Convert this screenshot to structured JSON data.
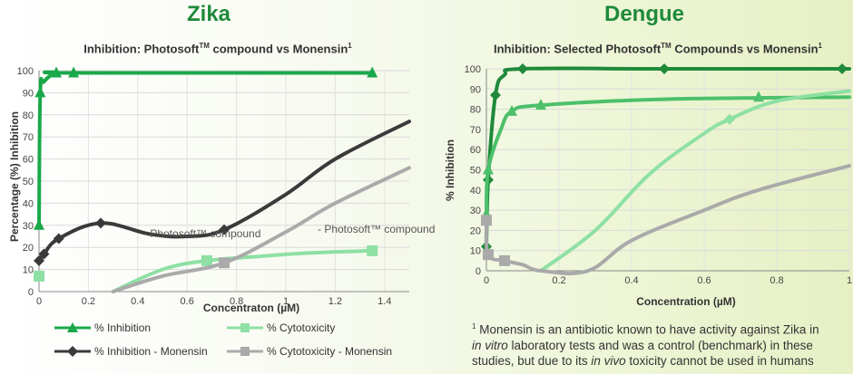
{
  "panels": [
    {
      "title": "Zika",
      "subtitle": "Inhibition: Photosoft",
      "subtitle_tm": "TM",
      "subtitle_rest": " compound vs Monensin",
      "subtitle_ref": "1"
    },
    {
      "title": "Dengue",
      "subtitle": "Inhibition: Selected Photosoft",
      "subtitle_tm": "TM",
      "subtitle_rest": " Compounds vs Monensin",
      "subtitle_ref": "1"
    }
  ],
  "annotations": {
    "zika_label_1": "- Photosoft™ compound",
    "zika_label_2": "- Photosoft™ compound"
  },
  "legend": [
    {
      "label": "% Inhibition",
      "color": "#1aa84a",
      "marker": "triangle"
    },
    {
      "label": "% Cytotoxicity",
      "color": "#8ee0a4",
      "marker": "square"
    },
    {
      "label": "% Inhibition - Monensin",
      "color": "#3a3a3a",
      "marker": "diamond"
    },
    {
      "label": "% Cytotoxicity - Monensin",
      "color": "#aaaaaa",
      "marker": "square"
    }
  ],
  "footnote": {
    "ref": "1",
    "line1": " Monensin is an antibiotic known to have activity against Zika in",
    "line2a": "in vitro",
    "line2b": " laboratory tests and was a control (benchmark) in these",
    "line3a": "studies, but due to its ",
    "line3b": "in vivo",
    "line3c": " toxicity cannot be used in humans"
  },
  "chart_data": [
    {
      "type": "line",
      "title": "Inhibition: Photosoft™ compound vs Monensin¹",
      "xlabel": "Concentraton (µM)",
      "ylabel": "Percentage (%) Inhibition",
      "xlim": [
        0,
        1.5
      ],
      "ylim": [
        0,
        100
      ],
      "xticks": [
        "0",
        "0.2",
        "0.4",
        "0.6",
        "0.8",
        "1",
        "1.2",
        "1.4"
      ],
      "yticks": [
        "0",
        "10",
        "20",
        "30",
        "40",
        "50",
        "60",
        "70",
        "80",
        "90",
        "100"
      ],
      "grid": true,
      "series": [
        {
          "name": "% Inhibition",
          "color": "#1aa84a",
          "marker": "triangle",
          "points": [
            [
              0,
              30
            ],
            [
              0.005,
              90
            ],
            [
              0.02,
              95
            ],
            [
              0.07,
              99
            ],
            [
              0.14,
              99
            ],
            [
              1.35,
              99
            ]
          ],
          "markers": [
            [
              0,
              30
            ],
            [
              0.005,
              90
            ],
            [
              0.07,
              99
            ],
            [
              0.14,
              99
            ],
            [
              1.35,
              99
            ]
          ]
        },
        {
          "name": "% Cytotoxicity",
          "color": "#8ee0a4",
          "marker": "square",
          "points": [
            [
              0.3,
              0
            ],
            [
              0.5,
              10
            ],
            [
              0.68,
              14
            ],
            [
              0.9,
              16
            ],
            [
              1.1,
              17.5
            ],
            [
              1.35,
              18.5
            ]
          ],
          "markers": [
            [
              0,
              7
            ],
            [
              0.68,
              14
            ],
            [
              1.35,
              18.5
            ]
          ]
        },
        {
          "name": "% Inhibition - Monensin",
          "color": "#3a3a3a",
          "marker": "diamond",
          "points": [
            [
              0,
              14
            ],
            [
              0.02,
              17
            ],
            [
              0.08,
              24
            ],
            [
              0.25,
              31
            ],
            [
              0.45,
              26
            ],
            [
              0.6,
              25
            ],
            [
              0.75,
              28
            ],
            [
              1.0,
              44
            ],
            [
              1.2,
              60
            ],
            [
              1.5,
              77
            ]
          ],
          "markers": [
            [
              0,
              14
            ],
            [
              0.02,
              17
            ],
            [
              0.08,
              24
            ],
            [
              0.25,
              31
            ],
            [
              0.75,
              28
            ]
          ]
        },
        {
          "name": "% Cytotoxicity - Monensin",
          "color": "#aaaaaa",
          "marker": "square",
          "points": [
            [
              0.3,
              0
            ],
            [
              0.5,
              7
            ],
            [
              0.75,
              13
            ],
            [
              1.0,
              27
            ],
            [
              1.2,
              40
            ],
            [
              1.5,
              56
            ]
          ],
          "markers": [
            [
              0.75,
              13
            ]
          ]
        }
      ]
    },
    {
      "type": "line",
      "title": "Inhibition: Selected Photosoft™ Compounds vs Monensin¹",
      "xlabel": "Concentration (µM)",
      "ylabel": "% Inhibition",
      "xlim": [
        0,
        1
      ],
      "ylim": [
        0,
        100
      ],
      "xticks": [
        "0",
        "0.2",
        "0.4",
        "0.6",
        "0.8",
        "1"
      ],
      "yticks": [
        "0",
        "10",
        "20",
        "30",
        "40",
        "50",
        "60",
        "70",
        "80",
        "90",
        "100"
      ],
      "grid": true,
      "series": [
        {
          "series_ref": "dark",
          "color": "#1f8a3a",
          "marker": "diamond",
          "points": [
            [
              0,
              12
            ],
            [
              0.005,
              45
            ],
            [
              0.025,
              87
            ],
            [
              0.05,
              97
            ],
            [
              0.1,
              100
            ],
            [
              0.49,
              100
            ],
            [
              1.0,
              100
            ]
          ],
          "markers": [
            [
              0,
              12
            ],
            [
              0.005,
              45
            ],
            [
              0.025,
              87
            ],
            [
              0.1,
              100
            ],
            [
              0.49,
              100
            ],
            [
              0.98,
              100
            ]
          ]
        },
        {
          "series_ref": "mid",
          "color": "#4cc06a",
          "marker": "triangle",
          "points": [
            [
              0,
              28
            ],
            [
              0.005,
              50
            ],
            [
              0.04,
              70
            ],
            [
              0.07,
              79
            ],
            [
              0.15,
              82
            ],
            [
              0.5,
              85
            ],
            [
              1.0,
              86
            ]
          ],
          "markers": [
            [
              0,
              28
            ],
            [
              0.005,
              50
            ],
            [
              0.07,
              79
            ],
            [
              0.15,
              82
            ],
            [
              0.75,
              86
            ]
          ]
        },
        {
          "series_ref": "light",
          "color": "#8ee0a4",
          "marker": "diamond",
          "points": [
            [
              0.15,
              0
            ],
            [
              0.3,
              20
            ],
            [
              0.45,
              48
            ],
            [
              0.6,
              68
            ],
            [
              0.67,
              75
            ],
            [
              0.8,
              84
            ],
            [
              1.0,
              89
            ]
          ],
          "markers": [
            [
              0.67,
              75
            ]
          ]
        },
        {
          "series_ref": "grey",
          "color": "#aaaaaa",
          "marker": "square",
          "points": [
            [
              0,
              25
            ],
            [
              0.005,
              8
            ],
            [
              0.05,
              5
            ],
            [
              0.1,
              3
            ],
            [
              0.15,
              0
            ],
            [
              0.28,
              0
            ],
            [
              0.4,
              15
            ],
            [
              0.6,
              30
            ],
            [
              0.75,
              40
            ],
            [
              1.0,
              52
            ]
          ],
          "markers": [
            [
              0,
              25
            ],
            [
              0.005,
              8
            ],
            [
              0.05,
              5
            ]
          ]
        }
      ]
    }
  ]
}
